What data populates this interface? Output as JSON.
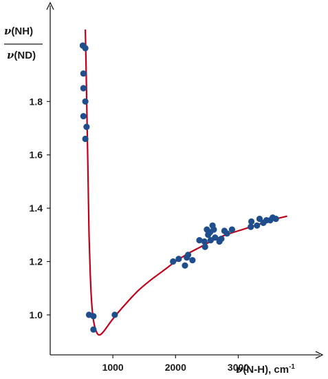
{
  "chart_data": {
    "type": "scatter",
    "ylabel_top": "(NH)",
    "ylabel_bottom": "(ND)",
    "ylabel_symbol": "ν",
    "xlabel_symbol": "ν",
    "xlabel_main": "(N-H), cm",
    "xlabel_sup": "-1",
    "xlim": [
      0,
      4300
    ],
    "ylim": [
      0.85,
      2.16
    ],
    "xticks": [
      1000,
      2000,
      3000
    ],
    "xtick_labels": [
      "1000",
      "2000",
      "3000"
    ],
    "yticks": [
      1.0,
      1.2,
      1.4,
      1.6,
      1.8
    ],
    "ytick_labels": [
      "1.0",
      "1.2",
      "1.4",
      "1.6",
      "1.8"
    ],
    "colors": {
      "points": "#1f4e8c",
      "curve": "#c0001a",
      "axis": "#1a1a1a"
    },
    "series": [
      {
        "role": "measured",
        "style": "markers",
        "points": [
          [
            520,
            2.01
          ],
          [
            560,
            2.0
          ],
          [
            530,
            1.905
          ],
          [
            530,
            1.85
          ],
          [
            560,
            1.8
          ],
          [
            530,
            1.745
          ],
          [
            580,
            1.705
          ],
          [
            560,
            1.66
          ],
          [
            620,
            1.0
          ],
          [
            690,
            0.995
          ],
          [
            690,
            0.945
          ],
          [
            1030,
            1.0
          ],
          [
            1960,
            1.2
          ],
          [
            2050,
            1.21
          ],
          [
            2150,
            1.185
          ],
          [
            2180,
            1.215
          ],
          [
            2200,
            1.225
          ],
          [
            2270,
            1.205
          ],
          [
            2380,
            1.28
          ],
          [
            2460,
            1.275
          ],
          [
            2470,
            1.255
          ],
          [
            2500,
            1.32
          ],
          [
            2520,
            1.3
          ],
          [
            2550,
            1.31
          ],
          [
            2560,
            1.28
          ],
          [
            2590,
            1.335
          ],
          [
            2610,
            1.32
          ],
          [
            2630,
            1.29
          ],
          [
            2700,
            1.275
          ],
          [
            2730,
            1.285
          ],
          [
            2780,
            1.315
          ],
          [
            2820,
            1.305
          ],
          [
            2900,
            1.32
          ],
          [
            3200,
            1.33
          ],
          [
            3210,
            1.35
          ],
          [
            3300,
            1.335
          ],
          [
            3340,
            1.36
          ],
          [
            3400,
            1.345
          ],
          [
            3450,
            1.355
          ],
          [
            3510,
            1.355
          ],
          [
            3550,
            1.365
          ],
          [
            3600,
            1.36
          ]
        ]
      },
      {
        "role": "fit",
        "style": "line",
        "points": [
          [
            560,
            2.07
          ],
          [
            575,
            1.9
          ],
          [
            590,
            1.7
          ],
          [
            605,
            1.5
          ],
          [
            620,
            1.3
          ],
          [
            640,
            1.15
          ],
          [
            660,
            1.05
          ],
          [
            690,
            0.98
          ],
          [
            740,
            0.935
          ],
          [
            790,
            0.925
          ],
          [
            860,
            0.94
          ],
          [
            1000,
            0.985
          ],
          [
            1200,
            1.04
          ],
          [
            1400,
            1.09
          ],
          [
            1600,
            1.13
          ],
          [
            1800,
            1.165
          ],
          [
            2000,
            1.2
          ],
          [
            2200,
            1.23
          ],
          [
            2400,
            1.255
          ],
          [
            2600,
            1.28
          ],
          [
            2800,
            1.3
          ],
          [
            3000,
            1.315
          ],
          [
            3200,
            1.33
          ],
          [
            3400,
            1.345
          ],
          [
            3600,
            1.36
          ],
          [
            3780,
            1.37
          ]
        ]
      }
    ]
  }
}
